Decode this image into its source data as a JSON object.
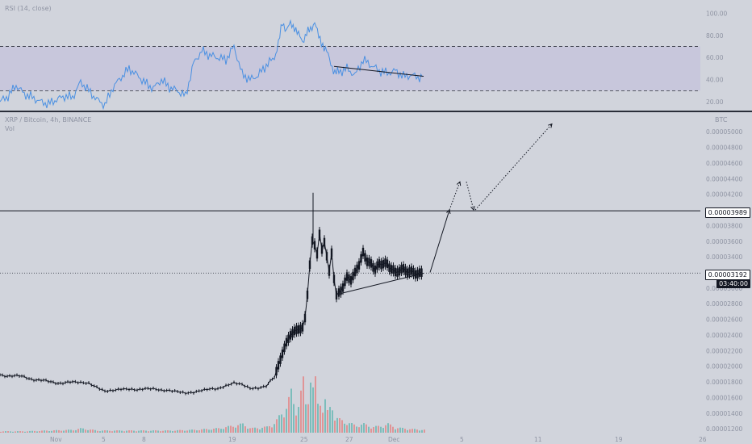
{
  "rsi_pane": {
    "legend": "RSI (14, close)",
    "scale_ticks": [
      {
        "label": "100.00",
        "v": 100
      },
      {
        "label": "80.00",
        "v": 80
      },
      {
        "label": "60.00",
        "v": 60
      },
      {
        "label": "40.00",
        "v": 40
      },
      {
        "label": "20.00",
        "v": 20
      }
    ],
    "upper_band": 70,
    "lower_band": 30,
    "ylim": [
      12,
      112
    ],
    "line_color": "#4a90e2",
    "band_fill": "#c4c3dc"
  },
  "price_pane": {
    "legend_title": "XRP / Bitcoin, 4h, BINANCE",
    "legend_vol": "Vol",
    "currency_label": "BTC",
    "scale_ticks": [
      {
        "label": "0.00005000",
        "v": 5.0
      },
      {
        "label": "0.00004800",
        "v": 4.8
      },
      {
        "label": "0.00004600",
        "v": 4.6
      },
      {
        "label": "0.00004400",
        "v": 4.4
      },
      {
        "label": "0.00004200",
        "v": 4.2
      },
      {
        "label": "0.00003800",
        "v": 3.8
      },
      {
        "label": "0.00003600",
        "v": 3.6
      },
      {
        "label": "0.00003400",
        "v": 3.4
      },
      {
        "label": "0.00003000",
        "v": 3.0
      },
      {
        "label": "0.00002800",
        "v": 2.8
      },
      {
        "label": "0.00002600",
        "v": 2.6
      },
      {
        "label": "0.00002400",
        "v": 2.4
      },
      {
        "label": "0.00002200",
        "v": 2.2
      },
      {
        "label": "0.00002000",
        "v": 2.0
      },
      {
        "label": "0.00001800",
        "v": 1.8
      },
      {
        "label": "0.00001600",
        "v": 1.6
      },
      {
        "label": "0.00001400",
        "v": 1.4
      },
      {
        "label": "0.00001200",
        "v": 1.2
      }
    ],
    "resistance_label": "0.00003989",
    "current_price_label": "0.00003192",
    "countdown_label": "03:40:00",
    "up_color": "#26a69a",
    "down_color": "#ef5350",
    "candle_color": "#131722"
  },
  "time_axis": {
    "labels": [
      "Nov",
      "5",
      "8",
      "19",
      "25",
      "27",
      "Dec",
      "5",
      "11",
      "19",
      "26"
    ]
  },
  "chart_data": {
    "type": "line",
    "title": "XRP / Bitcoin, 4h, BINANCE",
    "xlabel": "",
    "ylabel": "",
    "x_ticks": [
      "Nov",
      "5",
      "8",
      "19",
      "25",
      "27",
      "Dec",
      "5",
      "11",
      "19",
      "26"
    ],
    "ylim": [
      1.15,
      5.25
    ],
    "y_unit_note": "values shown as 1e-5 BTC",
    "series": [
      {
        "name": "price",
        "points": [
          [
            0,
            1.89
          ],
          [
            15,
            1.88
          ],
          [
            30,
            1.86
          ],
          [
            45,
            1.83
          ],
          [
            60,
            1.8
          ],
          [
            75,
            1.79
          ],
          [
            90,
            1.79
          ],
          [
            100,
            1.78
          ],
          [
            110,
            1.77
          ],
          [
            120,
            1.72
          ],
          [
            130,
            1.67
          ],
          [
            140,
            1.68
          ],
          [
            150,
            1.7
          ],
          [
            160,
            1.7
          ],
          [
            170,
            1.69
          ],
          [
            180,
            1.71
          ],
          [
            190,
            1.71
          ],
          [
            200,
            1.69
          ],
          [
            210,
            1.69
          ],
          [
            220,
            1.68
          ],
          [
            230,
            1.66
          ],
          [
            240,
            1.67
          ],
          [
            250,
            1.7
          ],
          [
            260,
            1.72
          ],
          [
            270,
            1.72
          ],
          [
            280,
            1.76
          ],
          [
            290,
            1.8
          ],
          [
            300,
            1.78
          ],
          [
            310,
            1.73
          ],
          [
            320,
            1.73
          ],
          [
            330,
            1.76
          ],
          [
            335,
            1.8
          ],
          [
            340,
            1.87
          ],
          [
            345,
            2.0
          ],
          [
            350,
            2.17
          ],
          [
            355,
            2.3
          ],
          [
            360,
            2.4
          ],
          [
            365,
            2.45
          ],
          [
            370,
            2.47
          ],
          [
            375,
            2.5
          ],
          [
            378,
            2.6
          ],
          [
            381,
            2.9
          ],
          [
            384,
            3.3
          ],
          [
            387,
            3.6
          ],
          [
            390,
            3.55
          ],
          [
            393,
            3.45
          ],
          [
            396,
            3.7
          ],
          [
            399,
            3.5
          ],
          [
            402,
            3.6
          ],
          [
            405,
            3.4
          ],
          [
            408,
            3.2
          ],
          [
            411,
            3.45
          ],
          [
            414,
            3.1
          ],
          [
            417,
            2.9
          ],
          [
            420,
            2.95
          ],
          [
            425,
            3.0
          ],
          [
            430,
            3.15
          ],
          [
            435,
            3.1
          ],
          [
            440,
            3.2
          ],
          [
            445,
            3.3
          ],
          [
            450,
            3.45
          ],
          [
            455,
            3.35
          ],
          [
            460,
            3.3
          ],
          [
            465,
            3.25
          ],
          [
            470,
            3.3
          ],
          [
            475,
            3.32
          ],
          [
            480,
            3.3
          ],
          [
            485,
            3.25
          ],
          [
            490,
            3.2
          ],
          [
            495,
            3.22
          ],
          [
            500,
            3.25
          ],
          [
            505,
            3.2
          ],
          [
            510,
            3.22
          ],
          [
            515,
            3.18
          ],
          [
            520,
            3.19
          ],
          [
            525,
            3.19
          ]
        ]
      }
    ],
    "rsi": {
      "name": "RSI (14, close)",
      "points": [
        [
          0,
          20
        ],
        [
          10,
          25
        ],
        [
          20,
          35
        ],
        [
          30,
          27
        ],
        [
          40,
          24
        ],
        [
          50,
          20
        ],
        [
          60,
          18
        ],
        [
          70,
          22
        ],
        [
          80,
          25
        ],
        [
          90,
          24
        ],
        [
          100,
          38
        ],
        [
          110,
          30
        ],
        [
          120,
          22
        ],
        [
          130,
          17
        ],
        [
          140,
          33
        ],
        [
          150,
          42
        ],
        [
          160,
          50
        ],
        [
          170,
          44
        ],
        [
          180,
          37
        ],
        [
          190,
          32
        ],
        [
          200,
          40
        ],
        [
          210,
          33
        ],
        [
          220,
          30
        ],
        [
          230,
          25
        ],
        [
          240,
          55
        ],
        [
          250,
          66
        ],
        [
          260,
          62
        ],
        [
          270,
          60
        ],
        [
          280,
          58
        ],
        [
          290,
          70
        ],
        [
          300,
          45
        ],
        [
          310,
          40
        ],
        [
          320,
          44
        ],
        [
          330,
          53
        ],
        [
          340,
          60
        ],
        [
          345,
          72
        ],
        [
          350,
          92
        ],
        [
          355,
          85
        ],
        [
          360,
          90
        ],
        [
          365,
          88
        ],
        [
          370,
          80
        ],
        [
          375,
          75
        ],
        [
          380,
          82
        ],
        [
          385,
          85
        ],
        [
          390,
          93
        ],
        [
          395,
          78
        ],
        [
          400,
          72
        ],
        [
          405,
          65
        ],
        [
          410,
          55
        ],
        [
          415,
          46
        ],
        [
          420,
          47
        ],
        [
          430,
          50
        ],
        [
          440,
          44
        ],
        [
          450,
          58
        ],
        [
          460,
          53
        ],
        [
          470,
          48
        ],
        [
          480,
          46
        ],
        [
          490,
          48
        ],
        [
          500,
          43
        ],
        [
          510,
          44
        ],
        [
          520,
          42
        ],
        [
          525,
          43
        ]
      ]
    },
    "volume": {
      "name": "Vol",
      "points": [
        [
          0,
          2
        ],
        [
          30,
          2
        ],
        [
          60,
          3
        ],
        [
          90,
          4
        ],
        [
          100,
          6
        ],
        [
          120,
          3
        ],
        [
          150,
          3
        ],
        [
          180,
          3
        ],
        [
          210,
          3
        ],
        [
          240,
          4
        ],
        [
          270,
          6
        ],
        [
          290,
          10
        ],
        [
          300,
          12
        ],
        [
          310,
          6
        ],
        [
          330,
          8
        ],
        [
          340,
          14
        ],
        [
          345,
          22
        ],
        [
          350,
          30
        ],
        [
          355,
          40
        ],
        [
          360,
          55
        ],
        [
          365,
          32
        ],
        [
          370,
          45
        ],
        [
          375,
          70
        ],
        [
          378,
          40
        ],
        [
          381,
          55
        ],
        [
          384,
          85
        ],
        [
          387,
          60
        ],
        [
          390,
          70
        ],
        [
          393,
          40
        ],
        [
          396,
          50
        ],
        [
          399,
          35
        ],
        [
          402,
          45
        ],
        [
          405,
          28
        ],
        [
          408,
          35
        ],
        [
          411,
          40
        ],
        [
          414,
          22
        ],
        [
          420,
          18
        ],
        [
          430,
          14
        ],
        [
          440,
          10
        ],
        [
          450,
          12
        ],
        [
          460,
          8
        ],
        [
          470,
          9
        ],
        [
          480,
          12
        ],
        [
          490,
          7
        ],
        [
          500,
          6
        ],
        [
          510,
          5
        ],
        [
          525,
          4
        ]
      ]
    },
    "annotations": [
      {
        "type": "horizontal_line",
        "value": 3.989,
        "label": "0.00003989"
      },
      {
        "type": "dotted_line",
        "value": 3.192,
        "label": "0.00003192"
      },
      {
        "type": "rsi_divergence_line"
      },
      {
        "type": "triangle_support_line"
      },
      {
        "type": "projection_arrows"
      }
    ]
  }
}
